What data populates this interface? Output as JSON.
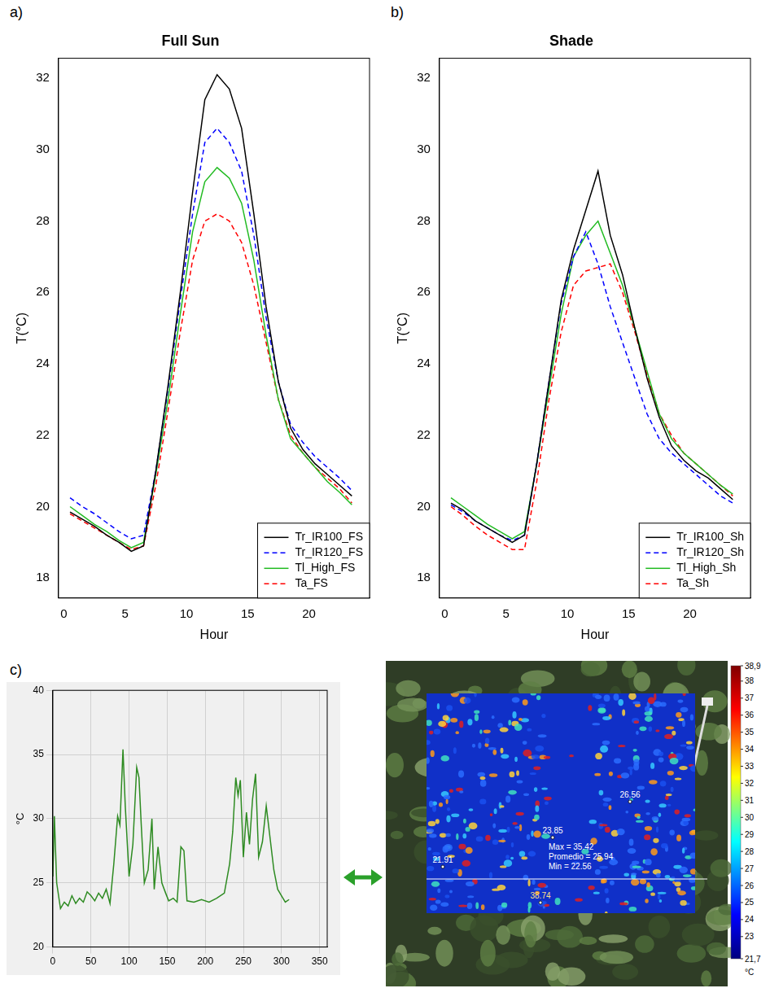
{
  "chart_data": [
    {
      "type": "line",
      "panel": "a)",
      "title": "Full Sun",
      "x_label": "Hour",
      "y_label": "T(°C)",
      "x": [
        0.5,
        1.5,
        2.5,
        3.5,
        4.5,
        5.5,
        6.5,
        7.5,
        8.5,
        9.5,
        10.5,
        11.5,
        12.5,
        13.5,
        14.5,
        15.5,
        16.5,
        17.5,
        18.5,
        19.5,
        20.5,
        21.5,
        22.5,
        23.5
      ],
      "series": [
        {
          "name": "Tr_IR100_FS",
          "color": "#000000",
          "line_style": "solid",
          "values": [
            19.85,
            19.65,
            19.45,
            19.2,
            19.0,
            18.75,
            18.9,
            21.0,
            23.4,
            26.0,
            28.8,
            31.4,
            32.1,
            31.7,
            30.6,
            28.2,
            25.6,
            23.5,
            22.2,
            21.6,
            21.2,
            20.9,
            20.6,
            20.3
          ]
        },
        {
          "name": "Tr_IR120_FS",
          "color": "#0000ff",
          "line_style": "dashed",
          "values": [
            20.25,
            20.0,
            19.8,
            19.55,
            19.3,
            19.1,
            19.2,
            21.0,
            23.3,
            25.8,
            28.2,
            30.2,
            30.6,
            30.2,
            29.4,
            27.6,
            25.3,
            23.5,
            22.3,
            21.8,
            21.4,
            21.1,
            20.8,
            20.45
          ]
        },
        {
          "name": "Tl_High_FS",
          "color": "#22bb22",
          "line_style": "solid",
          "values": [
            20.0,
            19.75,
            19.5,
            19.3,
            19.05,
            18.85,
            19.0,
            20.9,
            23.0,
            25.4,
            27.7,
            29.1,
            29.5,
            29.2,
            28.5,
            26.9,
            24.8,
            23.0,
            21.9,
            21.5,
            21.1,
            20.7,
            20.4,
            20.05
          ]
        },
        {
          "name": "Ta_FS",
          "color": "#ff0000",
          "line_style": "dashed",
          "values": [
            19.8,
            19.6,
            19.4,
            19.2,
            19.0,
            18.8,
            18.9,
            20.6,
            22.7,
            24.9,
            26.9,
            28.0,
            28.2,
            28.0,
            27.4,
            26.2,
            24.6,
            23.0,
            22.0,
            21.5,
            21.1,
            20.8,
            20.5,
            20.1
          ]
        }
      ],
      "xlim": [
        -0.44,
        24.94
      ],
      "xticks": [
        0,
        5,
        10,
        15,
        20
      ],
      "ylim": [
        17.44,
        32.56
      ],
      "yticks": [
        18,
        20,
        22,
        24,
        26,
        28,
        30,
        32
      ],
      "grid": false,
      "legend": "bottom-right"
    },
    {
      "type": "line",
      "panel": "b)",
      "title": "Shade",
      "x_label": "Hour",
      "y_label": "T(°C)",
      "x": [
        0.5,
        1.5,
        2.5,
        3.5,
        4.5,
        5.5,
        6.5,
        7.5,
        8.5,
        9.5,
        10.5,
        11.5,
        12.5,
        13.5,
        14.5,
        15.5,
        16.5,
        17.5,
        18.5,
        19.5,
        20.5,
        21.5,
        22.5,
        23.5
      ],
      "series": [
        {
          "name": "Tr_IR100_Sh",
          "color": "#000000",
          "line_style": "solid",
          "values": [
            20.1,
            19.9,
            19.6,
            19.4,
            19.2,
            19.0,
            19.2,
            21.2,
            23.5,
            25.8,
            27.2,
            28.3,
            29.4,
            27.6,
            26.5,
            25.0,
            23.6,
            22.5,
            21.7,
            21.3,
            21.0,
            20.8,
            20.5,
            20.2
          ]
        },
        {
          "name": "Tr_IR120_Sh",
          "color": "#0000ff",
          "line_style": "dashed",
          "values": [
            20.05,
            19.85,
            19.6,
            19.4,
            19.2,
            19.05,
            19.2,
            21.2,
            23.5,
            25.7,
            27.0,
            27.7,
            26.8,
            25.6,
            24.6,
            23.6,
            22.6,
            21.9,
            21.5,
            21.2,
            20.9,
            20.6,
            20.3,
            20.1
          ]
        },
        {
          "name": "Tl_High_Sh",
          "color": "#22bb22",
          "line_style": "solid",
          "values": [
            20.25,
            20.0,
            19.75,
            19.5,
            19.3,
            19.1,
            19.3,
            21.2,
            23.3,
            25.4,
            27.0,
            27.6,
            28.0,
            27.1,
            26.2,
            25.0,
            23.8,
            22.6,
            21.9,
            21.5,
            21.2,
            20.9,
            20.6,
            20.35
          ]
        },
        {
          "name": "Ta_Sh",
          "color": "#ff0000",
          "line_style": "dashed",
          "values": [
            20.0,
            19.75,
            19.45,
            19.2,
            19.0,
            18.8,
            18.8,
            20.7,
            23.0,
            24.9,
            26.2,
            26.6,
            26.7,
            26.8,
            26.0,
            24.9,
            23.7,
            22.6,
            22.0,
            21.5,
            21.2,
            20.9,
            20.6,
            20.3
          ]
        }
      ],
      "xlim": [
        -0.44,
        24.94
      ],
      "xticks": [
        0,
        5,
        10,
        15,
        20
      ],
      "ylim": [
        17.44,
        32.56
      ],
      "yticks": [
        18,
        20,
        22,
        24,
        26,
        28,
        30,
        32
      ],
      "grid": false,
      "legend": "bottom-right"
    },
    {
      "type": "line",
      "panel": "c)",
      "y_label": "°C",
      "x": [
        0,
        2,
        5,
        10,
        15,
        20,
        25,
        30,
        35,
        40,
        45,
        50,
        55,
        60,
        65,
        70,
        75,
        80,
        85,
        88,
        92,
        95,
        100,
        105,
        110,
        113,
        116,
        120,
        125,
        130,
        133,
        138,
        143,
        148,
        152,
        158,
        163,
        168,
        172,
        176,
        185,
        195,
        205,
        215,
        225,
        232,
        236,
        240,
        243,
        246,
        250,
        254,
        258,
        262,
        266,
        270,
        275,
        280,
        284,
        290,
        295,
        300,
        305,
        310
      ],
      "series": [
        {
          "color": "#2e8b22",
          "line_style": "solid",
          "values": [
            25.5,
            30.2,
            25.0,
            23.0,
            23.5,
            23.2,
            24.0,
            23.4,
            23.8,
            23.5,
            24.3,
            24.0,
            23.6,
            24.2,
            23.8,
            24.5,
            23.4,
            26.5,
            30.2,
            29.5,
            35.4,
            31.0,
            25.5,
            28.0,
            34.0,
            33.2,
            29.5,
            25.0,
            26.0,
            30.0,
            24.5,
            27.8,
            25.0,
            24.2,
            23.6,
            23.8,
            23.5,
            27.8,
            27.5,
            23.6,
            23.5,
            23.7,
            23.5,
            23.8,
            24.2,
            26.5,
            29.0,
            33.2,
            31.8,
            33.0,
            27.0,
            30.5,
            28.0,
            31.5,
            33.5,
            27.0,
            28.2,
            31.0,
            29.0,
            26.0,
            24.5,
            24.0,
            23.5,
            23.7
          ]
        }
      ],
      "xlim": [
        0,
        360
      ],
      "xticks": [
        0,
        50,
        100,
        150,
        200,
        250,
        300,
        350
      ],
      "ylim": [
        20,
        40
      ],
      "yticks": [
        20,
        25,
        30,
        35,
        40
      ],
      "grid": true
    }
  ],
  "thermal_image": {
    "spot_labels": [
      "26.56",
      "23.85",
      "21.91",
      "38.74"
    ],
    "stats": [
      "Max = 35.42",
      "Promedio = 25.94",
      "Min = 22.56"
    ],
    "colorbar": {
      "range": [
        21.7,
        38.9
      ],
      "ticks": [
        {
          "value": 38.9,
          "label": "38,9"
        },
        38,
        37,
        36,
        35,
        34,
        33,
        32,
        31,
        30,
        29,
        28,
        27,
        26,
        25,
        24,
        23,
        {
          "value": 21.7,
          "label": "21,7"
        }
      ],
      "unit": "°C"
    }
  }
}
